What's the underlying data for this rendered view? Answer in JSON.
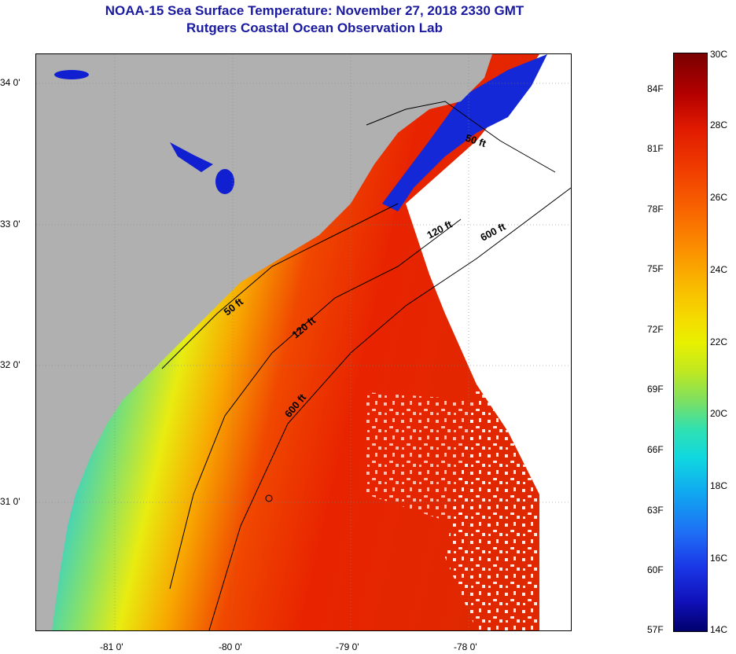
{
  "title": "NOAA-15 Sea Surface Temperature:  November 27, 2018 2330 GMT",
  "subtitle": "Rutgers Coastal Ocean Observation Lab",
  "map": {
    "latitude_labels": [
      "34 0'",
      "33 0'",
      "32 0'",
      "31 0'"
    ],
    "longitude_labels": [
      "-81 0'",
      "-80 0'",
      "-79 0'",
      "-78 0'"
    ],
    "isobath_labels": [
      "50 ft",
      "120 ft",
      "600 ft",
      "50 ft",
      "120 ft",
      "600 ft"
    ],
    "colors": {
      "land": "#b0b0b0",
      "cloud": "#ffffff",
      "cold": "#1010c8",
      "warm": "#e82800"
    }
  },
  "legend": {
    "fahrenheit_labels": [
      "84F",
      "81F",
      "78F",
      "75F",
      "72F",
      "69F",
      "66F",
      "63F",
      "60F",
      "57F"
    ],
    "celsius_labels": [
      "30C",
      "28C",
      "26C",
      "24C",
      "22C",
      "20C",
      "18C",
      "16C",
      "14C"
    ],
    "range_c": [
      14,
      30
    ]
  }
}
